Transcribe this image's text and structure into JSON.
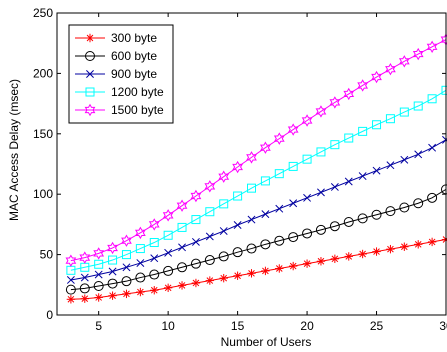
{
  "chart_data": {
    "type": "line",
    "title": "",
    "xlabel": "Number of Users",
    "ylabel": "MAC Access Delay (msec)",
    "xlim": [
      2,
      30
    ],
    "ylim": [
      0,
      250
    ],
    "xticks": [
      5,
      10,
      15,
      20,
      25,
      30
    ],
    "yticks": [
      0,
      50,
      100,
      150,
      200,
      250
    ],
    "grid": false,
    "legend_position": "top-left",
    "x": [
      3,
      4,
      5,
      6,
      7,
      8,
      9,
      10,
      11,
      12,
      13,
      14,
      15,
      16,
      17,
      18,
      19,
      20,
      21,
      22,
      23,
      24,
      25,
      26,
      27,
      28,
      29,
      30
    ],
    "series": [
      {
        "name": "300 byte",
        "color": "#ff0000",
        "marker": "asterisk",
        "values": [
          13,
          13.5,
          14.5,
          16,
          17.5,
          19,
          20.5,
          22.5,
          24.5,
          26.5,
          28.5,
          30.5,
          32.5,
          34.5,
          36.5,
          38.5,
          40.5,
          42.5,
          44.5,
          46.5,
          48.5,
          50.5,
          52.5,
          54.5,
          56.5,
          58.5,
          60.5,
          62.5
        ]
      },
      {
        "name": "600 byte",
        "color": "#000000",
        "marker": "circle",
        "values": [
          21,
          22,
          24,
          26,
          28,
          31,
          33.5,
          36.5,
          39.5,
          42.5,
          45.5,
          48.5,
          52,
          55,
          58.5,
          61.5,
          64.5,
          67.5,
          70.5,
          73.5,
          77,
          80,
          83,
          86,
          89,
          92.5,
          97,
          104
        ]
      },
      {
        "name": "900 byte",
        "color": "#0000a0",
        "marker": "x",
        "values": [
          29,
          31,
          33.5,
          36,
          39.5,
          43,
          47,
          51.5,
          56,
          60.5,
          65,
          69.5,
          74.5,
          79,
          83.5,
          88,
          92.5,
          97,
          101.5,
          106,
          110.5,
          115,
          119.5,
          124,
          128.5,
          133,
          138.5,
          145
        ]
      },
      {
        "name": "1200 byte",
        "color": "#00ffff",
        "marker": "square",
        "values": [
          37,
          39.5,
          42,
          45.5,
          50,
          55,
          60,
          66,
          72.5,
          79,
          85.5,
          92,
          98.5,
          105,
          111,
          117,
          123,
          129,
          135,
          141,
          146.5,
          152,
          157.5,
          162.5,
          168,
          173,
          179,
          186
        ]
      },
      {
        "name": "1500 byte",
        "color": "#ff00ff",
        "marker": "hexagram",
        "values": [
          45,
          47.5,
          51,
          55.5,
          61.5,
          68,
          75,
          82.5,
          90.5,
          98.5,
          106.5,
          114.5,
          122.5,
          130.5,
          138.5,
          146,
          153.5,
          161,
          168.5,
          176,
          183,
          190,
          197,
          203.5,
          210,
          216,
          222,
          228
        ]
      }
    ]
  }
}
